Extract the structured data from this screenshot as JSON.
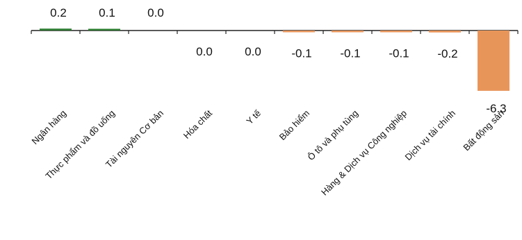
{
  "chart_data": {
    "type": "bar",
    "title": "",
    "xlabel": "",
    "ylabel": "",
    "ylim": [
      -6.3,
      0.2
    ],
    "grid": false,
    "legend": "none",
    "categories": [
      "Ngân hàng",
      "Thực phẩm và đồ uống",
      "Tài nguyên Cơ bản",
      "Hóa chất",
      "Y tế",
      "Bảo hiểm",
      "Ô tô và phụ tùng",
      "Hàng & Dịch vụ Công nghiệp",
      "Dịch vụ tài chính",
      "Bất động sản"
    ],
    "values": [
      0.2,
      0.1,
      0.0,
      0.0,
      0.0,
      -0.1,
      -0.1,
      -0.1,
      -0.2,
      -6.3
    ],
    "data_labels": [
      "0.2",
      "0.1",
      "0.0",
      "0.0",
      "0.0",
      "-0.1",
      "-0.1",
      "-0.1",
      "-0.2",
      "-6.3"
    ],
    "colors": {
      "positive": "#2e7d32",
      "negative": "#e8955a"
    }
  }
}
